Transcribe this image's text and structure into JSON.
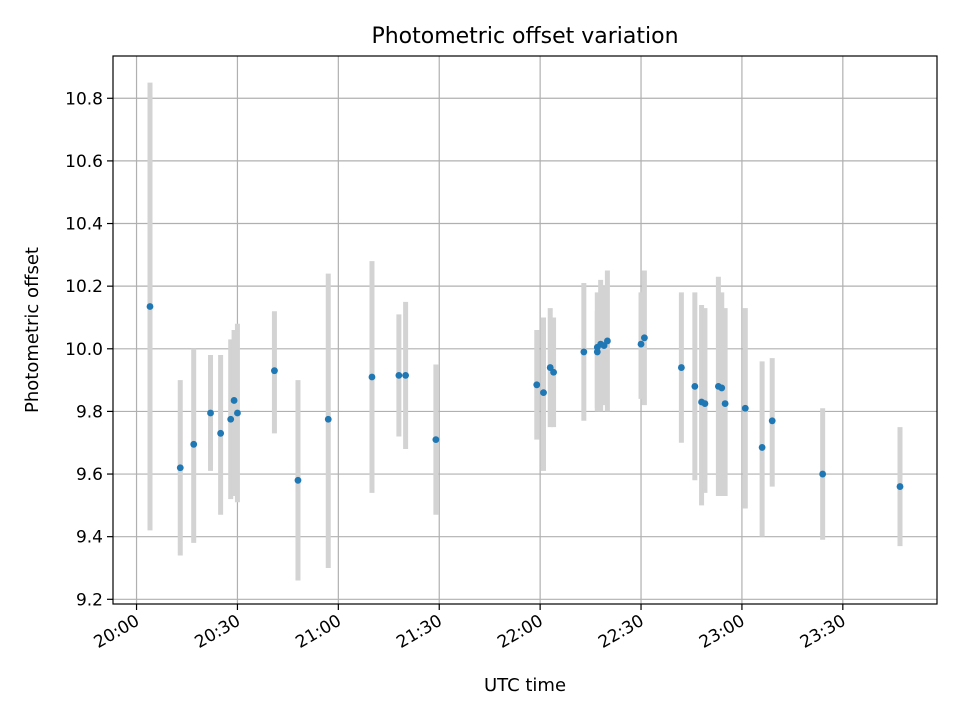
{
  "chart_data": {
    "type": "scatter",
    "title": "Photometric offset variation",
    "xlabel": "UTC time",
    "ylabel": "Photometric offset",
    "x_ticks": [
      "20:00",
      "20:30",
      "21:00",
      "21:30",
      "22:00",
      "22:30",
      "23:00",
      "23:30"
    ],
    "y_ticks": [
      "9.2",
      "9.4",
      "9.6",
      "9.8",
      "10.0",
      "10.2",
      "10.4",
      "10.6",
      "10.8"
    ],
    "xlim": [
      "19:53",
      "23:58"
    ],
    "ylim": [
      9.185,
      10.935
    ],
    "grid": true,
    "colors": {
      "point": "#1f77b4",
      "errorbar": "#d3d3d3",
      "grid": "#b0b0b0"
    },
    "points": [
      {
        "x": "20:04",
        "y": 10.135,
        "yerr_low": 9.42,
        "yerr_high": 10.85
      },
      {
        "x": "20:13",
        "y": 9.62,
        "yerr_low": 9.34,
        "yerr_high": 9.9
      },
      {
        "x": "20:17",
        "y": 9.695,
        "yerr_low": 9.38,
        "yerr_high": 10.0
      },
      {
        "x": "20:22",
        "y": 9.795,
        "yerr_low": 9.61,
        "yerr_high": 9.98
      },
      {
        "x": "20:25",
        "y": 9.73,
        "yerr_low": 9.47,
        "yerr_high": 9.98
      },
      {
        "x": "20:28",
        "y": 9.775,
        "yerr_low": 9.52,
        "yerr_high": 10.03
      },
      {
        "x": "20:29",
        "y": 9.835,
        "yerr_low": 9.53,
        "yerr_high": 10.06
      },
      {
        "x": "20:30",
        "y": 9.795,
        "yerr_low": 9.51,
        "yerr_high": 10.08
      },
      {
        "x": "20:41",
        "y": 9.93,
        "yerr_low": 9.73,
        "yerr_high": 10.12
      },
      {
        "x": "20:48",
        "y": 9.58,
        "yerr_low": 9.26,
        "yerr_high": 9.9
      },
      {
        "x": "20:57",
        "y": 9.775,
        "yerr_low": 9.3,
        "yerr_high": 10.24
      },
      {
        "x": "21:10",
        "y": 9.91,
        "yerr_low": 9.54,
        "yerr_high": 10.28
      },
      {
        "x": "21:18",
        "y": 9.915,
        "yerr_low": 9.72,
        "yerr_high": 10.11
      },
      {
        "x": "21:20",
        "y": 9.915,
        "yerr_low": 9.68,
        "yerr_high": 10.15
      },
      {
        "x": "21:29",
        "y": 9.71,
        "yerr_low": 9.47,
        "yerr_high": 9.95
      },
      {
        "x": "21:59",
        "y": 9.885,
        "yerr_low": 9.71,
        "yerr_high": 10.06
      },
      {
        "x": "22:01",
        "y": 9.86,
        "yerr_low": 9.61,
        "yerr_high": 10.1
      },
      {
        "x": "22:03",
        "y": 9.94,
        "yerr_low": 9.75,
        "yerr_high": 10.13
      },
      {
        "x": "22:04",
        "y": 9.925,
        "yerr_low": 9.75,
        "yerr_high": 10.1
      },
      {
        "x": "22:13",
        "y": 9.99,
        "yerr_low": 9.77,
        "yerr_high": 10.21
      },
      {
        "x": "22:17",
        "y": 10.005,
        "yerr_low": 9.8,
        "yerr_high": 10.18
      },
      {
        "x": "22:17",
        "y": 9.99,
        "yerr_low": 9.81,
        "yerr_high": 10.12
      },
      {
        "x": "22:18",
        "y": 10.015,
        "yerr_low": 9.8,
        "yerr_high": 10.22
      },
      {
        "x": "22:19",
        "y": 10.01,
        "yerr_low": 9.82,
        "yerr_high": 10.2
      },
      {
        "x": "22:20",
        "y": 10.025,
        "yerr_low": 9.8,
        "yerr_high": 10.25
      },
      {
        "x": "22:30",
        "y": 10.015,
        "yerr_low": 9.84,
        "yerr_high": 10.18
      },
      {
        "x": "22:31",
        "y": 10.035,
        "yerr_low": 9.82,
        "yerr_high": 10.25
      },
      {
        "x": "22:42",
        "y": 9.94,
        "yerr_low": 9.7,
        "yerr_high": 10.18
      },
      {
        "x": "22:46",
        "y": 9.88,
        "yerr_low": 9.58,
        "yerr_high": 10.18
      },
      {
        "x": "22:48",
        "y": 9.83,
        "yerr_low": 9.5,
        "yerr_high": 10.14
      },
      {
        "x": "22:49",
        "y": 9.825,
        "yerr_low": 9.54,
        "yerr_high": 10.13
      },
      {
        "x": "22:53",
        "y": 9.88,
        "yerr_low": 9.53,
        "yerr_high": 10.23
      },
      {
        "x": "22:54",
        "y": 9.875,
        "yerr_low": 9.53,
        "yerr_high": 10.18
      },
      {
        "x": "22:55",
        "y": 9.825,
        "yerr_low": 9.53,
        "yerr_high": 10.13
      },
      {
        "x": "23:01",
        "y": 9.81,
        "yerr_low": 9.49,
        "yerr_high": 10.13
      },
      {
        "x": "23:06",
        "y": 9.685,
        "yerr_low": 9.4,
        "yerr_high": 9.96
      },
      {
        "x": "23:09",
        "y": 9.77,
        "yerr_low": 9.56,
        "yerr_high": 9.97
      },
      {
        "x": "23:24",
        "y": 9.6,
        "yerr_low": 9.39,
        "yerr_high": 9.81
      },
      {
        "x": "23:47",
        "y": 9.56,
        "yerr_low": 9.37,
        "yerr_high": 9.75
      }
    ]
  }
}
